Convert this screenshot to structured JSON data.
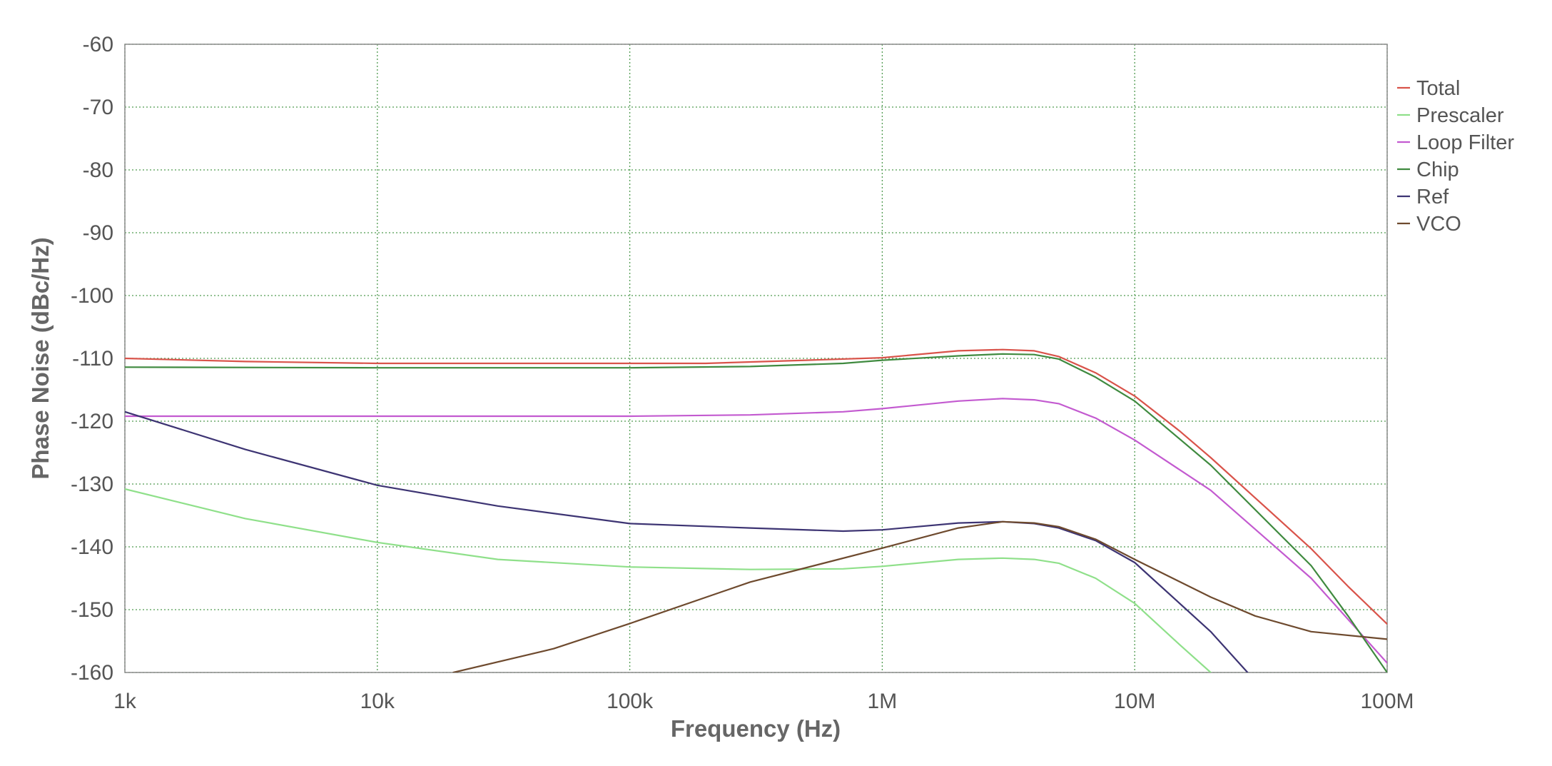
{
  "chart_data": {
    "type": "line",
    "xlabel": "Frequency (Hz)",
    "ylabel": "Phase Noise (dBc/Hz)",
    "xscale": "log",
    "xlim": [
      1000,
      100000000
    ],
    "ylim": [
      -160,
      -60
    ],
    "grid": true,
    "legend_position": "right",
    "xticks": [
      {
        "value": 1000,
        "label": "1k"
      },
      {
        "value": 10000,
        "label": "10k"
      },
      {
        "value": 100000,
        "label": "100k"
      },
      {
        "value": 1000000,
        "label": "1M"
      },
      {
        "value": 10000000,
        "label": "10M"
      },
      {
        "value": 100000000,
        "label": "100M"
      }
    ],
    "yticks": [
      {
        "value": -60,
        "label": "-60"
      },
      {
        "value": -70,
        "label": "-70"
      },
      {
        "value": -80,
        "label": "-80"
      },
      {
        "value": -90,
        "label": "-90"
      },
      {
        "value": -100,
        "label": "-100"
      },
      {
        "value": -110,
        "label": "-110"
      },
      {
        "value": -120,
        "label": "-120"
      },
      {
        "value": -130,
        "label": "-130"
      },
      {
        "value": -140,
        "label": "-140"
      },
      {
        "value": -150,
        "label": "-150"
      },
      {
        "value": -160,
        "label": "-160"
      }
    ],
    "series": [
      {
        "name": "Total",
        "color": "#d9534a",
        "points": [
          [
            1000,
            -110.0
          ],
          [
            3000,
            -110.5
          ],
          [
            10000,
            -110.8
          ],
          [
            30000,
            -110.8
          ],
          [
            100000,
            -110.8
          ],
          [
            200000,
            -110.8
          ],
          [
            500000,
            -110.3
          ],
          [
            1000000,
            -109.9
          ],
          [
            2000000,
            -108.8
          ],
          [
            3000000,
            -108.6
          ],
          [
            4000000,
            -108.8
          ],
          [
            5000000,
            -109.7
          ],
          [
            7000000,
            -112.3
          ],
          [
            10000000,
            -116.0
          ],
          [
            15000000,
            -121.5
          ],
          [
            20000000,
            -125.8
          ],
          [
            30000000,
            -132.2
          ],
          [
            50000000,
            -140.3
          ],
          [
            70000000,
            -146.3
          ],
          [
            100000000,
            -152.3
          ]
        ]
      },
      {
        "name": "Prescaler",
        "color": "#8fe08a",
        "points": [
          [
            1000,
            -130.8
          ],
          [
            3000,
            -135.5
          ],
          [
            10000,
            -139.3
          ],
          [
            30000,
            -142.0
          ],
          [
            100000,
            -143.2
          ],
          [
            300000,
            -143.6
          ],
          [
            700000,
            -143.5
          ],
          [
            1000000,
            -143.1
          ],
          [
            2000000,
            -142.0
          ],
          [
            3000000,
            -141.8
          ],
          [
            4000000,
            -142.0
          ],
          [
            5000000,
            -142.6
          ],
          [
            7000000,
            -145.0
          ],
          [
            10000000,
            -149.0
          ],
          [
            15000000,
            -155.5
          ],
          [
            20000000,
            -160.0
          ]
        ]
      },
      {
        "name": "Loop Filter",
        "color": "#c35ad0",
        "points": [
          [
            1000,
            -119.2
          ],
          [
            10000,
            -119.2
          ],
          [
            100000,
            -119.2
          ],
          [
            300000,
            -119.0
          ],
          [
            700000,
            -118.5
          ],
          [
            1000000,
            -118.0
          ],
          [
            2000000,
            -116.8
          ],
          [
            3000000,
            -116.4
          ],
          [
            4000000,
            -116.6
          ],
          [
            5000000,
            -117.2
          ],
          [
            7000000,
            -119.5
          ],
          [
            10000000,
            -123.0
          ],
          [
            20000000,
            -131.0
          ],
          [
            50000000,
            -145.0
          ],
          [
            100000000,
            -158.5
          ]
        ]
      },
      {
        "name": "Chip",
        "color": "#3f8a3f",
        "points": [
          [
            1000,
            -111.4
          ],
          [
            10000,
            -111.5
          ],
          [
            100000,
            -111.5
          ],
          [
            300000,
            -111.3
          ],
          [
            700000,
            -110.8
          ],
          [
            1000000,
            -110.3
          ],
          [
            2000000,
            -109.6
          ],
          [
            3000000,
            -109.3
          ],
          [
            4000000,
            -109.4
          ],
          [
            5000000,
            -110.1
          ],
          [
            7000000,
            -113.0
          ],
          [
            10000000,
            -116.8
          ],
          [
            20000000,
            -127.0
          ],
          [
            50000000,
            -143.0
          ],
          [
            70000000,
            -151.0
          ],
          [
            100000000,
            -160.0
          ]
        ]
      },
      {
        "name": "Ref",
        "color": "#3d3473",
        "points": [
          [
            1000,
            -118.5
          ],
          [
            3000,
            -124.5
          ],
          [
            10000,
            -130.2
          ],
          [
            30000,
            -133.5
          ],
          [
            100000,
            -136.3
          ],
          [
            300000,
            -137.0
          ],
          [
            700000,
            -137.5
          ],
          [
            1000000,
            -137.3
          ],
          [
            2000000,
            -136.2
          ],
          [
            3000000,
            -136.0
          ],
          [
            4000000,
            -136.3
          ],
          [
            5000000,
            -137.0
          ],
          [
            7000000,
            -139.0
          ],
          [
            10000000,
            -142.5
          ],
          [
            20000000,
            -153.5
          ],
          [
            28000000,
            -160.0
          ]
        ]
      },
      {
        "name": "VCO",
        "color": "#6e4a2e",
        "points": [
          [
            20000,
            -160.0
          ],
          [
            50000,
            -156.2
          ],
          [
            100000,
            -152.2
          ],
          [
            300000,
            -145.6
          ],
          [
            600000,
            -142.5
          ],
          [
            1000000,
            -140.2
          ],
          [
            2000000,
            -137.0
          ],
          [
            3000000,
            -136.0
          ],
          [
            4000000,
            -136.2
          ],
          [
            5000000,
            -136.8
          ],
          [
            7000000,
            -138.8
          ],
          [
            10000000,
            -142.0
          ],
          [
            20000000,
            -148.0
          ],
          [
            30000000,
            -151.0
          ],
          [
            50000000,
            -153.5
          ],
          [
            100000000,
            -154.7
          ]
        ]
      }
    ]
  }
}
